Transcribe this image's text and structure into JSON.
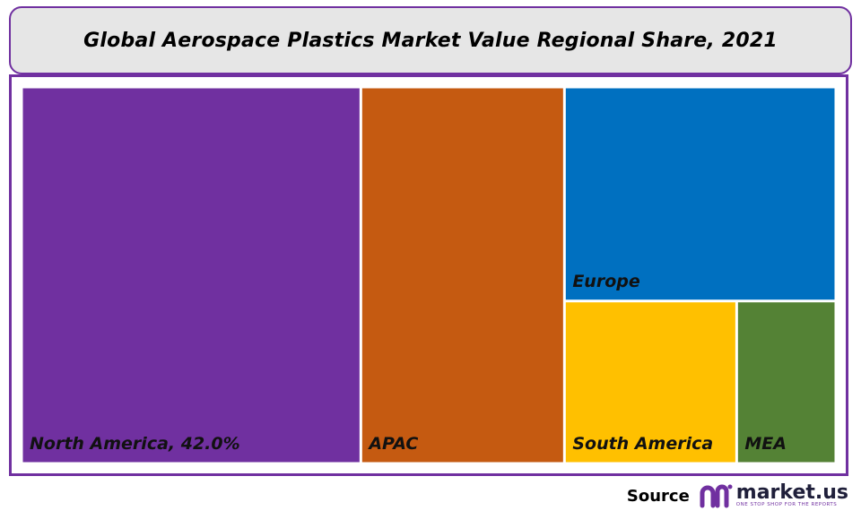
{
  "chart_data": {
    "type": "treemap",
    "title": "Global Aerospace Plastics Market Value Regional Share, 2021",
    "tiles": [
      {
        "name": "North America",
        "label": "North America, 42.0%",
        "value": 42.0,
        "color": "#7030a0"
      },
      {
        "name": "APAC",
        "label": "APAC",
        "value": 25.2,
        "color": "#c55a11"
      },
      {
        "name": "Europe",
        "label": "Europe",
        "value": 19.1,
        "color": "#0070c0"
      },
      {
        "name": "South America",
        "label": "South America",
        "value": 9.2,
        "color": "#ffc000"
      },
      {
        "name": "MEA",
        "label": "MEA",
        "value": 5.3,
        "color": "#548235"
      }
    ]
  },
  "footer": {
    "source_label": "Source",
    "brand_name": "market.us",
    "brand_tagline": "ONE STOP SHOP FOR THE REPORTS"
  },
  "colors": {
    "accent": "#7030a0",
    "title_bg": "#e6e6e6"
  },
  "icons": {
    "logo": "market-us-logo-icon"
  }
}
